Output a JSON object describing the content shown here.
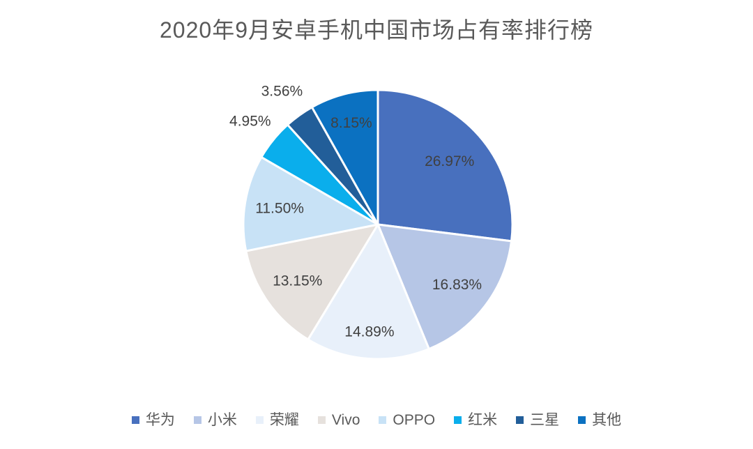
{
  "colors": {
    "background": "#ffffff",
    "title_text": "#595959",
    "label_text": "#404040",
    "legend_text": "#595959",
    "slice_border": "#ffffff"
  },
  "chart_data": {
    "type": "pie",
    "title": "2020年9月安卓手机中国市场占有率排行榜",
    "start_angle_deg": 0,
    "direction": "clockwise",
    "legend_position": "bottom",
    "categories": [
      "华为",
      "小米",
      "荣耀",
      "Vivo",
      "OPPO",
      "红米",
      "三星",
      "其他"
    ],
    "values": [
      26.97,
      16.83,
      14.89,
      13.15,
      11.5,
      4.95,
      3.56,
      8.15
    ],
    "slices": [
      {
        "name": "华为",
        "value": 26.97,
        "label": "26.97%",
        "color": "#4870BE",
        "label_placement": "inside",
        "label_r": 0.71
      },
      {
        "name": "小米",
        "value": 16.83,
        "label": "16.83%",
        "color": "#B6C6E6",
        "label_placement": "inside",
        "label_r": 0.74
      },
      {
        "name": "荣耀",
        "value": 14.89,
        "label": "14.89%",
        "color": "#E8F0FA",
        "label_placement": "inside",
        "label_r": 0.8
      },
      {
        "name": "Vivo",
        "value": 13.15,
        "label": "13.15%",
        "color": "#E6E1DD",
        "label_placement": "inside",
        "label_r": 0.73
      },
      {
        "name": "OPPO",
        "value": 11.5,
        "label": "11.50%",
        "color": "#C8E2F6",
        "label_placement": "inside",
        "label_r": 0.74
      },
      {
        "name": "红米",
        "value": 4.95,
        "label": "4.95%",
        "color": "#0AAEEC",
        "label_placement": "outside",
        "label_r": 1.22
      },
      {
        "name": "三星",
        "value": 3.56,
        "label": "3.56%",
        "color": "#225E99",
        "label_placement": "outside",
        "label_r": 1.22
      },
      {
        "name": "其他",
        "value": 8.15,
        "label": "8.15%",
        "color": "#0B71C1",
        "label_placement": "inside",
        "label_r": 0.78
      }
    ]
  }
}
